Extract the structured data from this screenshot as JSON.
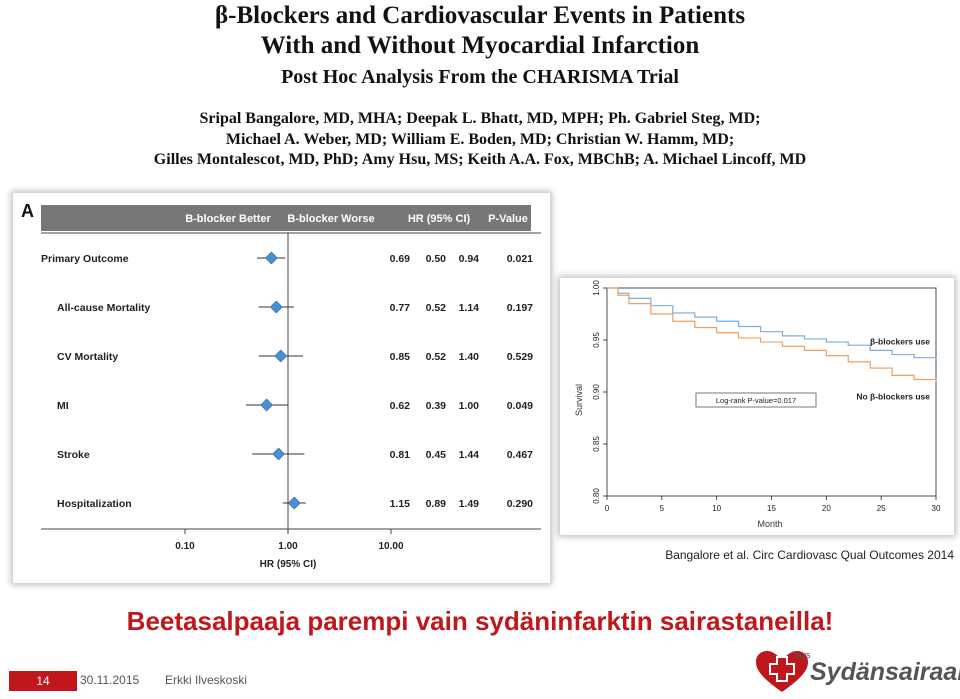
{
  "header": {
    "title_line1": "β-Blockers and Cardiovascular Events in Patients",
    "title_line2": "With and Without Myocardial Infarction",
    "title_line3": "Post Hoc Analysis From the CHARISMA Trial",
    "authors_line1": "Sripal Bangalore, MD, MHA; Deepak L. Bhatt, MD, MPH; Ph. Gabriel Steg, MD;",
    "authors_line2": "Michael A. Weber, MD; William E. Boden, MD; Christian W. Hamm, MD;",
    "authors_line3": "Gilles Montalescot, MD, PhD; Amy Hsu, MS; Keith A.A. Fox, MBChB; A. Michael Lincoff, MD"
  },
  "chart_data": [
    {
      "type": "forest",
      "panel_label": "A",
      "header": {
        "better": "B-blocker Better",
        "worse": "B-blocker Worse",
        "hr_col": "HR  (95%  CI)",
        "p_col": "P-Value"
      },
      "rows": [
        {
          "label": "Primary Outcome",
          "hr": "0.69",
          "lo": "0.50",
          "hi": "0.94",
          "p": "0.021",
          "hr_v": 0.69,
          "lo_v": 0.5,
          "hi_v": 0.94
        },
        {
          "label": "All-cause Mortality",
          "hr": "0.77",
          "lo": "0.52",
          "hi": "1.14",
          "p": "0.197",
          "hr_v": 0.77,
          "lo_v": 0.52,
          "hi_v": 1.14
        },
        {
          "label": "CV Mortality",
          "hr": "0.85",
          "lo": "0.52",
          "hi": "1.40",
          "p": "0.529",
          "hr_v": 0.85,
          "lo_v": 0.52,
          "hi_v": 1.4
        },
        {
          "label": "MI",
          "hr": "0.62",
          "lo": "0.39",
          "hi": "1.00",
          "p": "0.049",
          "hr_v": 0.62,
          "lo_v": 0.39,
          "hi_v": 1.0
        },
        {
          "label": "Stroke",
          "hr": "0.81",
          "lo": "0.45",
          "hi": "1.44",
          "p": "0.467",
          "hr_v": 0.81,
          "lo_v": 0.45,
          "hi_v": 1.44
        },
        {
          "label": "Hospitalization",
          "hr": "1.15",
          "lo": "0.89",
          "hi": "1.49",
          "p": "0.290",
          "hr_v": 1.15,
          "lo_v": 0.89,
          "hi_v": 1.49
        }
      ],
      "x_ticks": [
        "0.10",
        "1.00",
        "10.00"
      ],
      "x_ticks_v": [
        0.1,
        1,
        10
      ],
      "xlabel": "HR (95% CI)",
      "xscale": "log",
      "colors": {
        "marker": "#4a8fd0",
        "header_bar": "#777777"
      }
    },
    {
      "type": "line",
      "xlabel": "Month",
      "ylabel": "Survival",
      "xlim": [
        0,
        30
      ],
      "ylim": [
        0.8,
        1.0
      ],
      "x_ticks": [
        "0",
        "5",
        "10",
        "15",
        "20",
        "25",
        "30"
      ],
      "y_ticks": [
        "0.80",
        "0.85",
        "0.90",
        "0.95",
        "1.00"
      ],
      "annotation": "Log-rank P-value=0.017",
      "series": [
        {
          "name": "β-blockers use",
          "color": "#7aaee0",
          "x": [
            0,
            1,
            2,
            4,
            6,
            8,
            10,
            12,
            14,
            16,
            18,
            20,
            22,
            24,
            26,
            28,
            30
          ],
          "y": [
            1.0,
            0.995,
            0.99,
            0.983,
            0.976,
            0.972,
            0.968,
            0.963,
            0.958,
            0.954,
            0.951,
            0.948,
            0.945,
            0.94,
            0.936,
            0.933,
            0.932
          ]
        },
        {
          "name": "No β-blockers use",
          "color": "#f0a060",
          "x": [
            0,
            1,
            2,
            4,
            6,
            8,
            10,
            12,
            14,
            16,
            18,
            20,
            22,
            24,
            26,
            28,
            30
          ],
          "y": [
            1.0,
            0.993,
            0.985,
            0.975,
            0.968,
            0.962,
            0.957,
            0.952,
            0.948,
            0.944,
            0.94,
            0.935,
            0.929,
            0.923,
            0.916,
            0.912,
            0.91
          ]
        }
      ]
    }
  ],
  "citation": "Bangalore et al. Circ Cardiovasc Qual Outcomes 2014",
  "conclusion": "Beetasalpaaja parempi vain sydäninfarktin sairastaneilla!",
  "footer": {
    "slide_number": "14",
    "date": "30.11.2015",
    "author": "Erkki Ilveskoski"
  },
  "logo": {
    "small_text": "Tays",
    "name": "Sydänsairaala",
    "colors": {
      "heart": "#c0171d",
      "text": "#555555"
    }
  }
}
